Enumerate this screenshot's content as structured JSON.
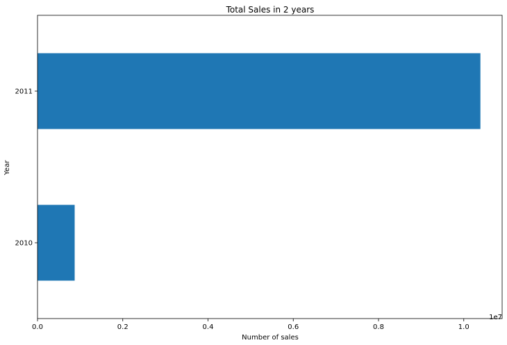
{
  "chart_data": {
    "type": "bar",
    "orientation": "horizontal",
    "title": "Total Sales in 2 years",
    "xlabel": "Number of sales",
    "ylabel": "Year",
    "categories": [
      "2010",
      "2011"
    ],
    "values": [
      872000,
      10390000
    ],
    "xlim": [
      0,
      10900000
    ],
    "x_ticks": [
      0,
      2000000,
      4000000,
      6000000,
      8000000,
      10000000
    ],
    "x_tick_labels": [
      "0.0",
      "0.2",
      "0.4",
      "0.6",
      "0.8",
      "1.0"
    ],
    "x_offset_label": "1e7",
    "bar_color": "#1f77b4",
    "grid": false,
    "legend": "none"
  }
}
